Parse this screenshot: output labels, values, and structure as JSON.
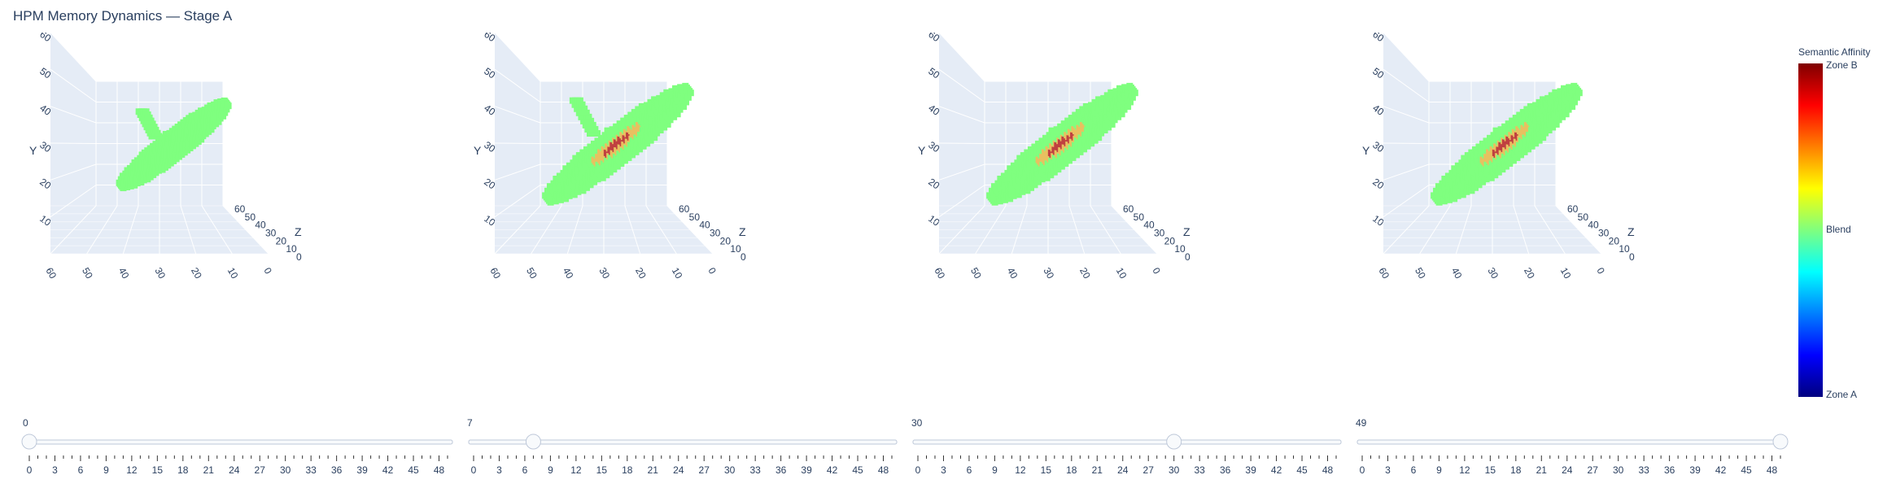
{
  "title": "HPM Memory Dynamics — Stage A",
  "colorbar": {
    "title": "Semantic Affinity",
    "labels": [
      "Zone B",
      "Blend",
      "Zone A"
    ],
    "colorscale": [
      "#00007f",
      "#0000ff",
      "#007fff",
      "#00ffff",
      "#7fff7f",
      "#ffff00",
      "#ff7f00",
      "#ff0000",
      "#7f0000"
    ]
  },
  "colors": {
    "scene_bg": "#e5ecf6",
    "grid": "#ffffff",
    "slider_rail": "#f8fafc",
    "slider_border": "#bec8d9",
    "surface": "#7fff7f",
    "hot": "#e8c060",
    "core": "#c04040"
  },
  "chart_data": [
    {
      "type": "scatter3d",
      "axes": {
        "x": {
          "range": [
            0,
            60
          ],
          "ticks": [
            0,
            10,
            20,
            30,
            40,
            50,
            60
          ]
        },
        "y": {
          "label": "Y",
          "range": [
            0,
            60
          ],
          "ticks": [
            10,
            20,
            30,
            40,
            50,
            60
          ]
        },
        "z": {
          "label": "Z",
          "range": [
            0,
            60
          ],
          "ticks": [
            0,
            10,
            20,
            30,
            40,
            50,
            60
          ]
        }
      },
      "slider": {
        "current": 0,
        "min": 0,
        "max": 49,
        "tick_labels": [
          0,
          3,
          6,
          9,
          12,
          15,
          18,
          21,
          24,
          27,
          30,
          33,
          36,
          39,
          42,
          45,
          48
        ]
      },
      "blob": {
        "dent": true,
        "hot": false
      }
    },
    {
      "type": "scatter3d",
      "axes": {
        "x": {
          "range": [
            0,
            60
          ],
          "ticks": [
            0,
            10,
            20,
            30,
            40,
            50,
            60
          ]
        },
        "y": {
          "label": "Y",
          "range": [
            0,
            60
          ],
          "ticks": [
            10,
            20,
            30,
            40,
            50,
            60
          ]
        },
        "z": {
          "label": "Z",
          "range": [
            0,
            60
          ],
          "ticks": [
            0,
            10,
            20,
            30,
            40,
            50,
            60
          ]
        }
      },
      "slider": {
        "current": 7,
        "min": 0,
        "max": 49,
        "tick_labels": [
          0,
          3,
          6,
          9,
          12,
          15,
          18,
          21,
          24,
          27,
          30,
          33,
          36,
          39,
          42,
          45,
          48
        ]
      },
      "blob": {
        "dent": true,
        "hot": true
      }
    },
    {
      "type": "scatter3d",
      "axes": {
        "x": {
          "range": [
            0,
            60
          ],
          "ticks": [
            0,
            10,
            20,
            30,
            40,
            50,
            60
          ]
        },
        "y": {
          "label": "Y",
          "range": [
            0,
            60
          ],
          "ticks": [
            10,
            20,
            30,
            40,
            50,
            60
          ]
        },
        "z": {
          "label": "Z",
          "range": [
            0,
            60
          ],
          "ticks": [
            0,
            10,
            20,
            30,
            40,
            50,
            60
          ]
        }
      },
      "slider": {
        "current": 30,
        "min": 0,
        "max": 49,
        "tick_labels": [
          0,
          3,
          6,
          9,
          12,
          15,
          18,
          21,
          24,
          27,
          30,
          33,
          36,
          39,
          42,
          45,
          48
        ]
      },
      "blob": {
        "dent": false,
        "hot": true
      }
    },
    {
      "type": "scatter3d",
      "axes": {
        "x": {
          "range": [
            0,
            60
          ],
          "ticks": [
            0,
            10,
            20,
            30,
            40,
            50,
            60
          ]
        },
        "y": {
          "label": "Y",
          "range": [
            0,
            60
          ],
          "ticks": [
            10,
            20,
            30,
            40,
            50,
            60
          ]
        },
        "z": {
          "label": "Z",
          "range": [
            0,
            60
          ],
          "ticks": [
            0,
            10,
            20,
            30,
            40,
            50,
            60
          ]
        }
      },
      "slider": {
        "current": 49,
        "min": 0,
        "max": 49,
        "tick_labels": [
          0,
          3,
          6,
          9,
          12,
          15,
          18,
          21,
          24,
          27,
          30,
          33,
          36,
          39,
          42,
          45,
          48
        ]
      },
      "blob": {
        "dent": false,
        "hot": true
      }
    }
  ]
}
